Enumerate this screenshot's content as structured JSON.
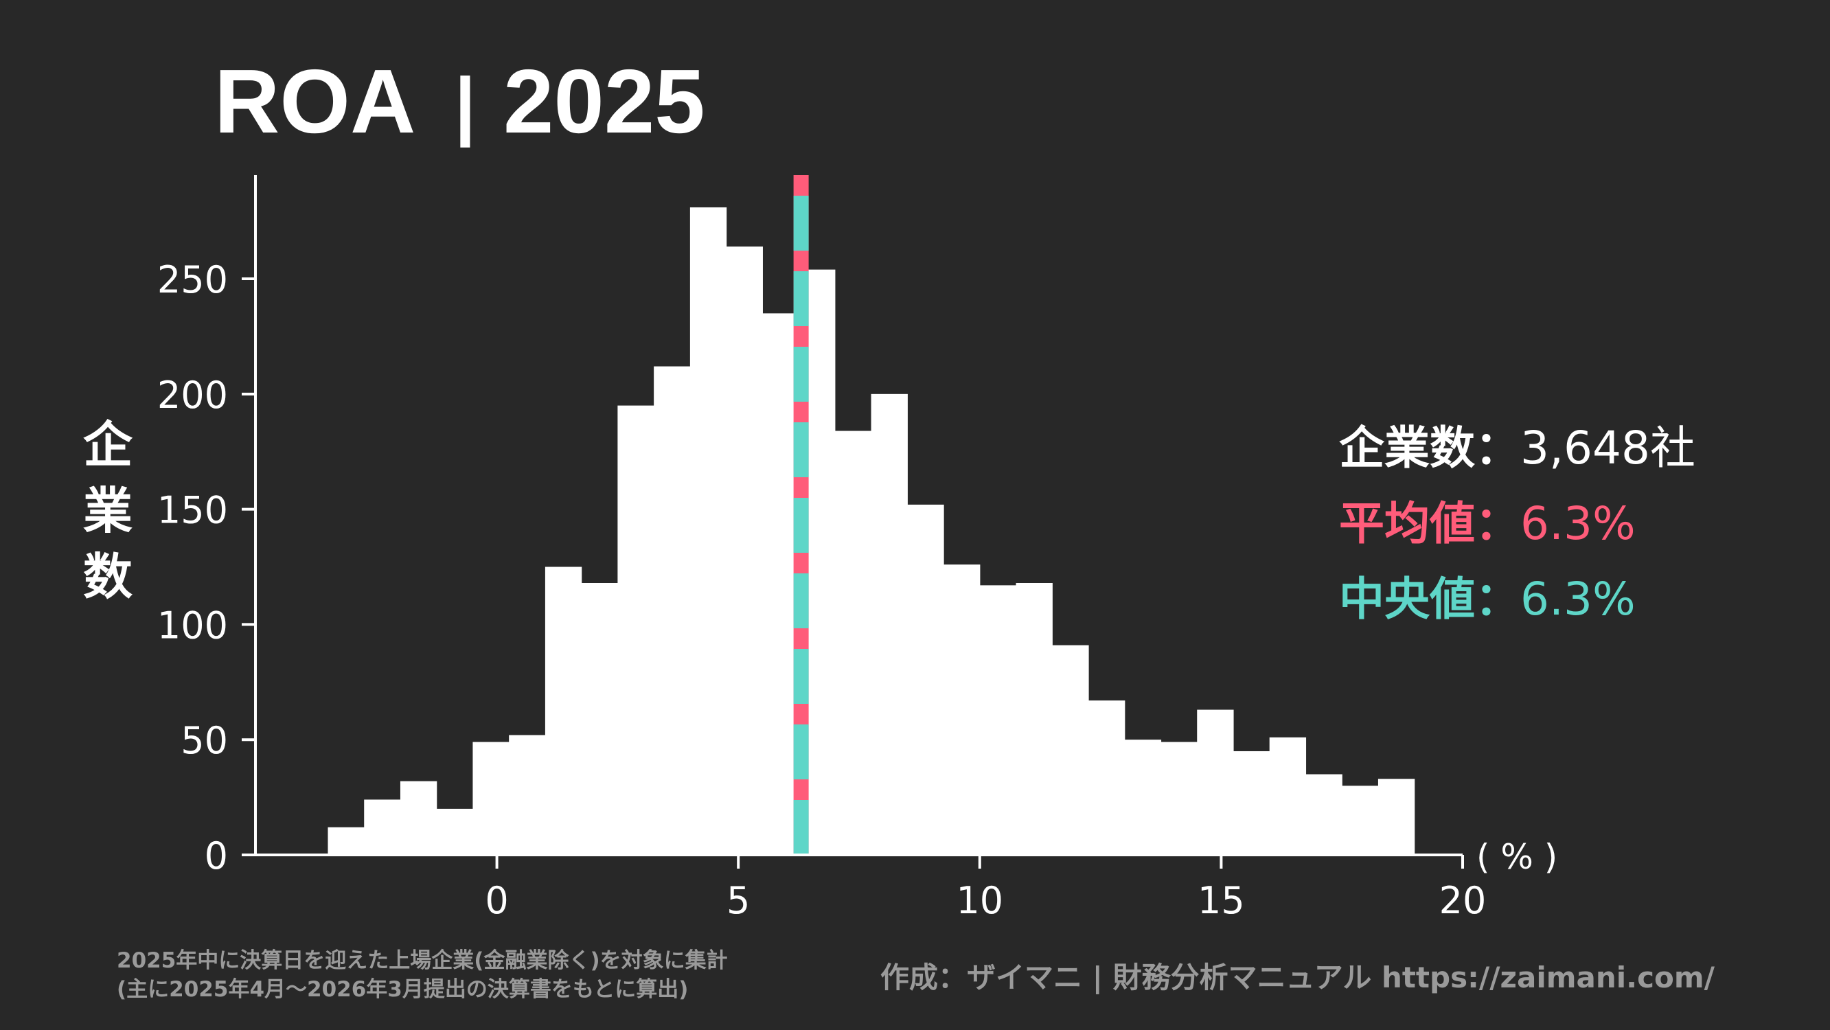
{
  "chart_data": {
    "type": "bar",
    "title": "ROA",
    "title_separator": "|",
    "title_year": "2025",
    "ylabel": "企業数",
    "xunit": "( % )",
    "xlim": [
      -5,
      20
    ],
    "ylim": [
      0,
      295
    ],
    "xticks": [
      0,
      5,
      10,
      15,
      20
    ],
    "yticks": [
      0,
      50,
      100,
      150,
      200,
      250
    ],
    "bin_width": 0.75,
    "bin_edges_start": -3.5,
    "values": [
      12,
      24,
      32,
      20,
      49,
      52,
      125,
      118,
      195,
      212,
      281,
      264,
      235,
      254,
      184,
      200,
      152,
      126,
      117,
      118,
      91,
      67,
      50,
      49,
      63,
      45,
      51,
      35,
      30,
      33
    ],
    "mean": 6.3,
    "median": 6.3,
    "colors": {
      "background": "#282828",
      "bars": "#ffffff",
      "mean": "#ff5c7a",
      "median": "#5ed6c8",
      "footer": "#9a9a9a"
    }
  },
  "stats": {
    "count_label": "企業数：",
    "count_value": "3,648社",
    "mean_label": "平均値：",
    "mean_value": "6.3%",
    "median_label": "中央値：",
    "median_value": "6.3%"
  },
  "footer": {
    "note_line1": "2025年中に決算日を迎えた上場企業(金融業除く)を対象に集計",
    "note_line2": "(主に2025年4月〜2026年3月提出の決算書をもとに算出)",
    "credit": "作成：ザイマニ | 財務分析マニュアル https://zaimani.com/"
  }
}
